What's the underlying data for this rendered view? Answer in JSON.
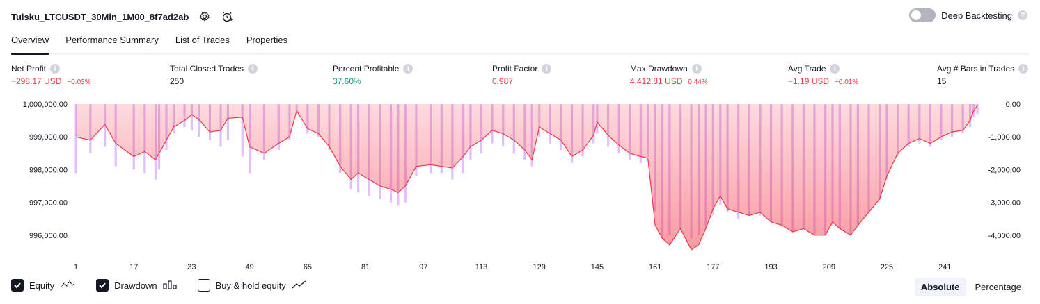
{
  "header": {
    "title": "Tuisku_LTCUSDT_30Min_1M00_8f7ad2ab",
    "deep_backtesting_label": "Deep Backtesting",
    "help_mark": "?"
  },
  "tabs": [
    "Overview",
    "Performance Summary",
    "List of Trades",
    "Properties"
  ],
  "metrics": [
    {
      "label": "Net Profit",
      "value": "−298.17 USD",
      "sub": "−0.03%",
      "color": "red"
    },
    {
      "label": "Total Closed Trades",
      "value": "250",
      "sub": "",
      "color": "dark"
    },
    {
      "label": "Percent Profitable",
      "value": "37.60%",
      "sub": "",
      "color": "green"
    },
    {
      "label": "Profit Factor",
      "value": "0.987",
      "sub": "",
      "color": "red"
    },
    {
      "label": "Max Drawdown",
      "value": "4,412.81 USD",
      "sub": "0.44%",
      "color": "red"
    },
    {
      "label": "Avg Trade",
      "value": "−1.19 USD",
      "sub": "−0.01%",
      "color": "red"
    },
    {
      "label": "Avg # Bars in Trades",
      "value": "15",
      "sub": "",
      "color": "dark"
    }
  ],
  "info_mark": "i",
  "legend": {
    "equity_label": "Equity",
    "drawdown_label": "Drawdown",
    "buyhold_label": "Buy & hold equity",
    "equity_checked": true,
    "drawdown_checked": true,
    "buyhold_checked": false
  },
  "view_mode": {
    "options": [
      "Absolute",
      "Percentage"
    ],
    "selected": "Absolute"
  },
  "colors": {
    "red": "#f23645",
    "green": "#089981",
    "dark": "#131722",
    "equity_line": "#f23645",
    "drawdown_bar": "#ce93f8"
  },
  "chart_data": {
    "type": "area",
    "x_ticks": [
      "1",
      "17",
      "33",
      "49",
      "65",
      "81",
      "97",
      "113",
      "129",
      "145",
      "161",
      "177",
      "193",
      "209",
      "225",
      "241"
    ],
    "left_axis": {
      "ticks": [
        "1,000,000.00",
        "999,000.00",
        "998,000.00",
        "997,000.00",
        "996,000.00"
      ],
      "ylim": [
        995700,
        1000000
      ]
    },
    "right_axis": {
      "ticks": [
        "0.00",
        "-1,000.00",
        "-2,000.00",
        "-3,000.00",
        "-4,000.00"
      ],
      "ylim": [
        -4300,
        0
      ]
    },
    "series": [
      {
        "type": "line",
        "x": [
          1,
          5,
          9,
          12,
          17,
          20,
          23,
          24,
          26,
          28,
          31,
          33,
          35,
          38,
          41,
          43,
          47,
          49,
          53,
          57,
          60,
          62,
          65,
          68,
          71,
          74,
          77,
          79,
          82,
          85,
          88,
          90,
          92,
          95,
          99,
          102,
          105,
          108,
          110,
          113,
          116,
          119,
          122,
          125,
          127,
          129,
          132,
          135,
          138,
          141,
          144,
          145,
          148,
          151,
          154,
          157,
          159,
          161,
          163,
          165,
          168,
          171,
          173,
          175,
          177,
          179,
          181,
          184,
          187,
          190,
          193,
          196,
          199,
          202,
          205,
          208,
          210,
          212,
          215,
          217,
          220,
          223,
          225,
          228,
          231,
          234,
          237,
          240,
          243,
          246,
          248,
          249,
          250
        ],
        "values": [
          999000,
          998900,
          999380,
          998800,
          998400,
          998550,
          998300,
          998500,
          998900,
          999300,
          999500,
          999680,
          999530,
          999150,
          999200,
          999570,
          999600,
          998700,
          998500,
          998800,
          999000,
          999800,
          999250,
          999100,
          998700,
          998100,
          997700,
          997900,
          997700,
          997500,
          997400,
          997300,
          997500,
          998100,
          998150,
          998100,
          998050,
          998400,
          998700,
          998900,
          999200,
          999100,
          998900,
          998600,
          998300,
          999300,
          999100,
          998900,
          998400,
          998600,
          999050,
          999450,
          999050,
          998750,
          998500,
          998400,
          998350,
          996300,
          995900,
          995700,
          996200,
          995550,
          995700,
          996200,
          996800,
          997200,
          996800,
          996700,
          996600,
          996700,
          996400,
          996300,
          996100,
          996200,
          996000,
          996000,
          996400,
          996200,
          996000,
          996300,
          996700,
          997100,
          997800,
          998500,
          998800,
          998950,
          998800,
          999000,
          999150,
          999200,
          999500,
          999800,
          999950
        ],
        "name": ""
      },
      {
        "type": "bar",
        "x": [
          1,
          5,
          9,
          12,
          17,
          20,
          23,
          24,
          26,
          28,
          31,
          33,
          35,
          38,
          41,
          43,
          47,
          49,
          53,
          57,
          60,
          62,
          65,
          68,
          71,
          74,
          77,
          79,
          82,
          85,
          88,
          90,
          92,
          95,
          99,
          102,
          105,
          108,
          110,
          113,
          116,
          119,
          122,
          125,
          127,
          129,
          132,
          135,
          138,
          141,
          144,
          145,
          148,
          151,
          154,
          157,
          159,
          161,
          163,
          165,
          168,
          171,
          173,
          175,
          177,
          179,
          181,
          184,
          187,
          190,
          193,
          196,
          199,
          202,
          205,
          208,
          210,
          212,
          215,
          217,
          220,
          223,
          225,
          228,
          231,
          234,
          237,
          240,
          243,
          246,
          248,
          249,
          250
        ],
        "values": [
          -2100,
          -1500,
          -1300,
          -1900,
          -2000,
          -2100,
          -2300,
          -2000,
          -1400,
          -900,
          -700,
          -800,
          -1000,
          -1100,
          -1300,
          -1100,
          -1600,
          -2100,
          -1700,
          -1400,
          -1100,
          -200,
          -900,
          -1000,
          -1400,
          -2100,
          -2600,
          -2700,
          -2800,
          -2900,
          -3000,
          -3100,
          -3000,
          -2200,
          -2100,
          -2100,
          -2300,
          -2100,
          -1700,
          -1500,
          -1200,
          -1300,
          -1500,
          -1700,
          -1900,
          -1000,
          -1200,
          -1400,
          -1800,
          -1600,
          -1200,
          -900,
          -1300,
          -1500,
          -1700,
          -1800,
          -1600,
          -3300,
          -4100,
          -4000,
          -3800,
          -4100,
          -4000,
          -3800,
          -3400,
          -3100,
          -3300,
          -3500,
          -3400,
          -3400,
          -3600,
          -3700,
          -3900,
          -3800,
          -4000,
          -4000,
          -3700,
          -3800,
          -4000,
          -3700,
          -3300,
          -2900,
          -2300,
          -1600,
          -1300,
          -1200,
          -1300,
          -1100,
          -1000,
          -900,
          -700,
          -400,
          -300
        ],
        "name": ""
      }
    ],
    "grid": false,
    "legend": "bottom-left"
  }
}
